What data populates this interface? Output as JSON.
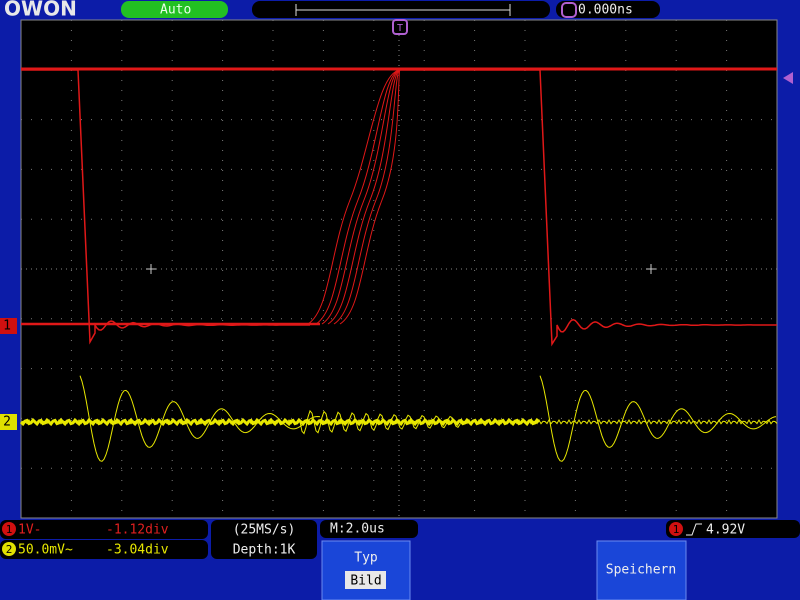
{
  "header": {
    "logo": "OWON",
    "mode": "Auto",
    "trigger_marker": "T",
    "trigger_time": "0.000ns"
  },
  "channels": {
    "ch1_marker": "1",
    "ch2_marker": "2"
  },
  "status": {
    "ch1_number": "1",
    "ch1_scale": "1V-",
    "ch1_offset": "-1.12div",
    "ch2_number": "2",
    "ch2_scale": "50.0mV~",
    "ch2_offset": "-3.04div",
    "sample_rate": "(25MS/s)",
    "depth": "Depth:1K",
    "timebase": "M:2.0us",
    "trigger_source": "1",
    "trigger_level": "4.92V"
  },
  "menu": {
    "button1_title": "Typ",
    "button1_value": "Bild",
    "button2_title": "Speichern"
  }
}
